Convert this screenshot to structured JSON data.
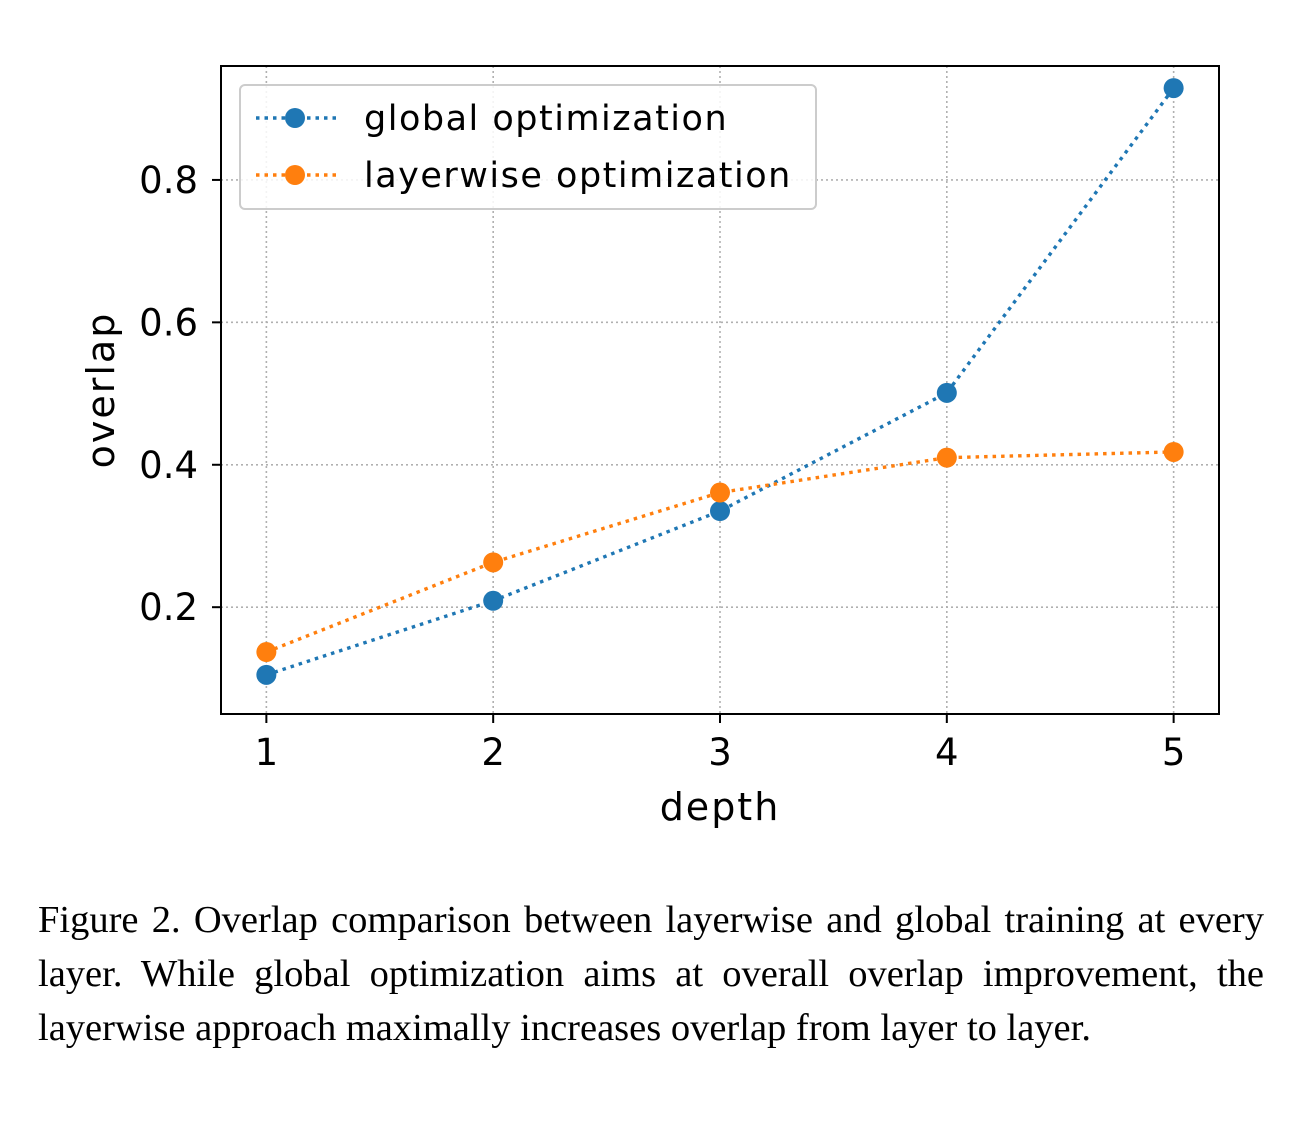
{
  "chart_data": {
    "type": "line",
    "xlabel": "depth",
    "ylabel": "overlap",
    "x": [
      1,
      2,
      3,
      4,
      5
    ],
    "xticks": [
      "1",
      "2",
      "3",
      "4",
      "5"
    ],
    "yticks": [
      "0.2",
      "0.4",
      "0.6",
      "0.8"
    ],
    "xlim": [
      0.8,
      5.2
    ],
    "ylim": [
      0.05,
      0.96
    ],
    "grid": true,
    "legend_position": "top-left",
    "line_style": "dotted",
    "series": [
      {
        "name": "global optimization",
        "color": "#1f77b4",
        "values": [
          0.105,
          0.209,
          0.335,
          0.501,
          0.929
        ]
      },
      {
        "name": "layerwise optimization",
        "color": "#ff7f0e",
        "values": [
          0.137,
          0.263,
          0.361,
          0.41,
          0.418
        ]
      }
    ]
  },
  "caption": "Figure 2.  Overlap comparison between layerwise and global training at every layer.  While global optimization aims at overall overlap improvement, the layerwise approach maximally increases overlap from layer to layer."
}
